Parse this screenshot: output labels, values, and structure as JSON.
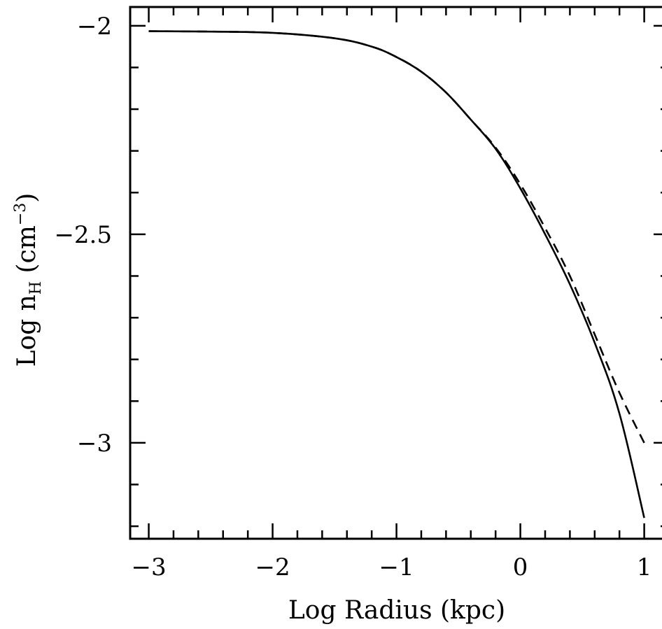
{
  "chart_data": {
    "type": "line",
    "xlabel": "Log Radius (kpc)",
    "ylabel": {
      "prefix": "Log n",
      "subscript": "H",
      "unit_open": " (cm",
      "superscript": "−3",
      "unit_close": ")"
    },
    "xlim": [
      -3.15,
      1.2
    ],
    "ylim": [
      -3.23,
      -1.955
    ],
    "x_ticks": [
      -3,
      -2,
      -1,
      0,
      1
    ],
    "x_tick_labels": [
      "−3",
      "−2",
      "−1",
      "0",
      "1"
    ],
    "y_ticks": [
      -2,
      -2.5,
      -3
    ],
    "y_tick_labels": [
      "−2",
      "−2.5",
      "−3"
    ],
    "x_minor_step": 0.2,
    "y_minor_step": 0.1,
    "grid": false,
    "legend": "none",
    "colors": {
      "line": "#000000",
      "frame": "#000000",
      "background": "#ffffff"
    },
    "series": [
      {
        "style": "solid",
        "points": [
          [
            -3.0,
            -2.013
          ],
          [
            -2.5,
            -2.014
          ],
          [
            -2.0,
            -2.017
          ],
          [
            -1.5,
            -2.03
          ],
          [
            -1.2,
            -2.05
          ],
          [
            -1.0,
            -2.075
          ],
          [
            -0.8,
            -2.11
          ],
          [
            -0.6,
            -2.16
          ],
          [
            -0.4,
            -2.225
          ],
          [
            -0.2,
            -2.295
          ],
          [
            0.0,
            -2.39
          ],
          [
            0.2,
            -2.5
          ],
          [
            0.4,
            -2.62
          ],
          [
            0.6,
            -2.76
          ],
          [
            0.8,
            -2.93
          ],
          [
            1.0,
            -3.18
          ]
        ]
      },
      {
        "style": "dashed",
        "points": [
          [
            -3.0,
            -2.013
          ],
          [
            -2.5,
            -2.014
          ],
          [
            -2.0,
            -2.017
          ],
          [
            -1.5,
            -2.03
          ],
          [
            -1.2,
            -2.05
          ],
          [
            -1.0,
            -2.075
          ],
          [
            -0.8,
            -2.11
          ],
          [
            -0.6,
            -2.16
          ],
          [
            -0.4,
            -2.225
          ],
          [
            -0.2,
            -2.292
          ],
          [
            0.0,
            -2.38
          ],
          [
            0.2,
            -2.485
          ],
          [
            0.4,
            -2.6
          ],
          [
            0.6,
            -2.74
          ],
          [
            0.8,
            -2.88
          ],
          [
            1.0,
            -3.0
          ]
        ]
      }
    ]
  }
}
